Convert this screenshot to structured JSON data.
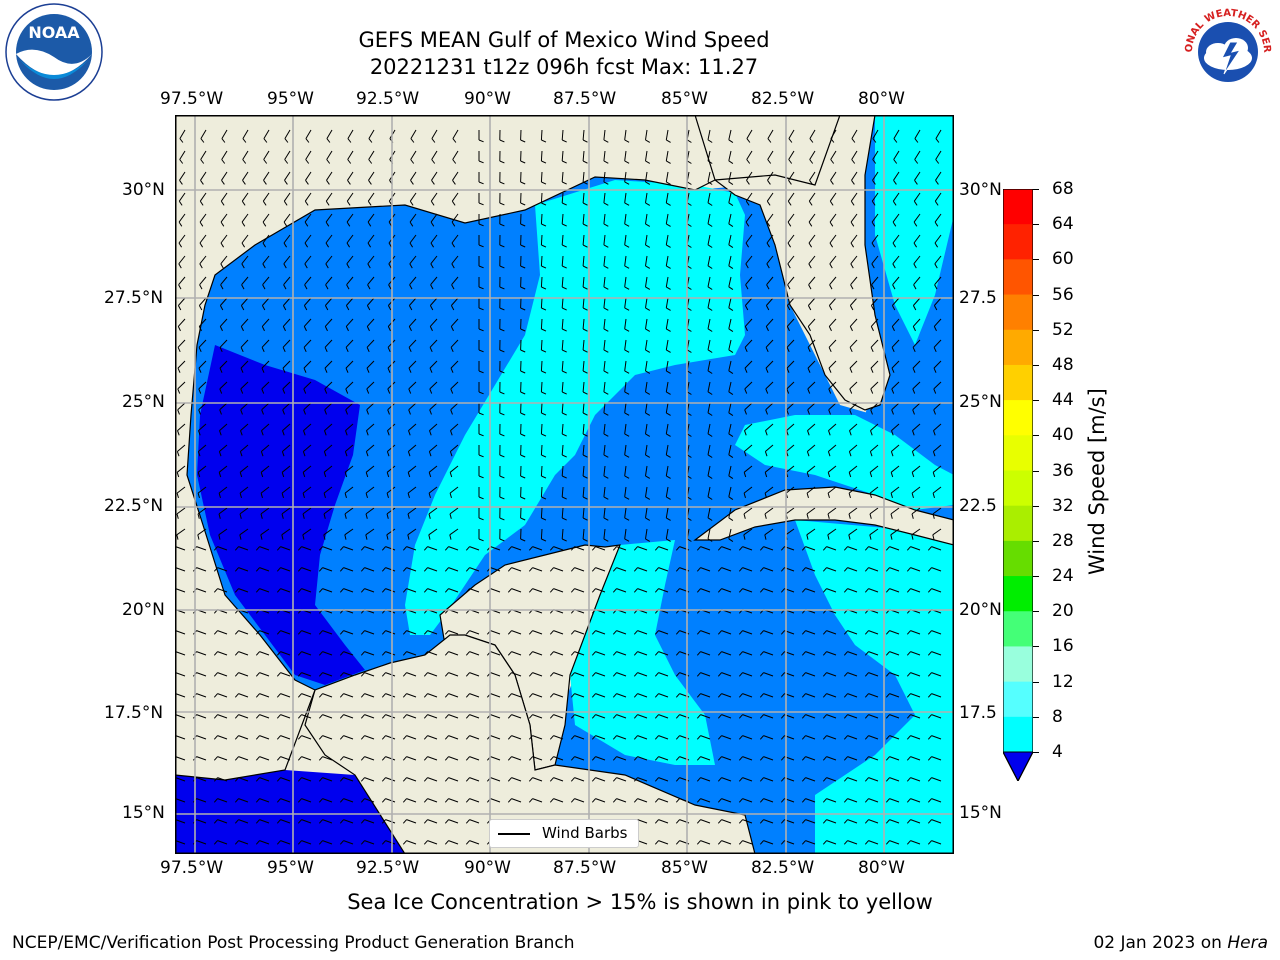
{
  "header": {
    "title_line1": "GEFS MEAN Gulf of Mexico Wind Speed",
    "title_line2": "20221231 t12z 096h fcst   Max: 11.27"
  },
  "logos": {
    "left": "NOAA",
    "right": "NATIONAL WEATHER SERVICE"
  },
  "map": {
    "lon_ticks": [
      "97.5°W",
      "95°W",
      "92.5°W",
      "90°W",
      "87.5°W",
      "85°W",
      "82.5°W",
      "80°W"
    ],
    "lat_ticks": [
      "30°N",
      "27.5°N",
      "25°N",
      "22.5°N",
      "20°N",
      "17.5°N",
      "15°N"
    ],
    "lat_ticks_right": [
      "30°N",
      "27.5",
      "25°N",
      "22.5",
      "20°N",
      "17.5",
      "15°N"
    ],
    "legend_label": "Wind Barbs",
    "colors": {
      "land": "#eeeddc",
      "ocean_4_8": "#0080ff",
      "ocean_0_4": "#0000ee",
      "ocean_8_12": "#00ffff",
      "grid": "#b0b0b0"
    }
  },
  "colorbar": {
    "label": "Wind Speed [m/s]",
    "ticks": [
      "68",
      "64",
      "60",
      "56",
      "52",
      "48",
      "44",
      "40",
      "36",
      "32",
      "28",
      "24",
      "20",
      "16",
      "12",
      "8",
      "4"
    ],
    "colors_top_to_bottom": [
      "#ff0000",
      "#ff2200",
      "#ff5500",
      "#ff8000",
      "#ffaa00",
      "#ffd000",
      "#ffff00",
      "#e8ff00",
      "#ccff00",
      "#aaee00",
      "#66dd00",
      "#00ee00",
      "#44ff77",
      "#99ffdd",
      "#55ffff",
      "#00ffff",
      "#0080ff",
      "#0000ee"
    ]
  },
  "note": "Sea Ice Concentration > 15% is shown in pink to yellow",
  "footer": {
    "left": "NCEP/EMC/Verification Post Processing Product Generation Branch",
    "right_date": "02 Jan 2023 on ",
    "right_host": "Hera"
  },
  "chart_data": {
    "type": "heatmap",
    "title": "GEFS MEAN Gulf of Mexico Wind Speed",
    "subtitle": "20221231 t12z 096h fcst   Max: 11.27",
    "max_value": 11.27,
    "units": "m/s",
    "lon_range": [
      -98.0,
      -78.25
    ],
    "lat_range": [
      14.0,
      31.75
    ],
    "color_levels": [
      4,
      8,
      12,
      16,
      20,
      24,
      28,
      32,
      36,
      40,
      44,
      48,
      52,
      56,
      60,
      64,
      68
    ]
  }
}
